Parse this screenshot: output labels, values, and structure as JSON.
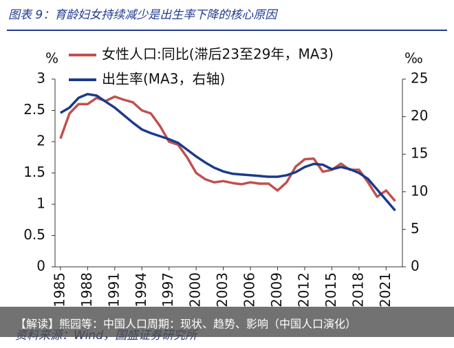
{
  "chart_data": {
    "type": "line",
    "title": "图表 9：育龄妇女持续减少是出生率下降的核心原因",
    "y_unit": "%",
    "y2_unit": "‰",
    "x": [
      1985,
      1986,
      1987,
      1988,
      1989,
      1990,
      1991,
      1992,
      1993,
      1994,
      1995,
      1996,
      1997,
      1998,
      1999,
      2000,
      2001,
      2002,
      2003,
      2004,
      2005,
      2006,
      2007,
      2008,
      2009,
      2010,
      2011,
      2012,
      2013,
      2014,
      2015,
      2016,
      2017,
      2018,
      2019,
      2020,
      2021,
      2022
    ],
    "xlim": [
      1984.4,
      2022.8
    ],
    "xticks": [
      1985,
      1988,
      1991,
      1994,
      1997,
      2000,
      2003,
      2006,
      2009,
      2012,
      2015,
      2018,
      2021
    ],
    "ylim": [
      0,
      3
    ],
    "yticks": [
      0,
      0.5,
      1,
      1.5,
      2,
      2.5,
      3
    ],
    "y2lim": [
      0,
      25
    ],
    "y2ticks": [
      0,
      5,
      10,
      15,
      20,
      25
    ],
    "series": [
      {
        "name": "女性人口:同比(滞后23至29年，MA3)",
        "color": "#c0504d",
        "values": [
          2.05,
          2.45,
          2.6,
          2.6,
          2.7,
          2.65,
          2.72,
          2.67,
          2.63,
          2.5,
          2.45,
          2.25,
          2.0,
          1.95,
          1.75,
          1.5,
          1.4,
          1.35,
          1.37,
          1.34,
          1.32,
          1.35,
          1.33,
          1.33,
          1.22,
          1.35,
          1.6,
          1.72,
          1.73,
          1.52,
          1.55,
          1.65,
          1.55,
          1.55,
          1.35,
          1.12,
          1.22,
          1.05
        ]
      },
      {
        "name": "出生率(MA3，右轴)",
        "color": "#1a3a8c",
        "axis": "y2",
        "values": [
          20.5,
          21.2,
          22.5,
          23.0,
          22.8,
          22.0,
          21.2,
          20.2,
          19.2,
          18.3,
          17.8,
          17.4,
          17.0,
          16.5,
          15.6,
          14.7,
          13.9,
          13.2,
          12.7,
          12.4,
          12.3,
          12.2,
          12.1,
          12.0,
          12.0,
          12.2,
          12.6,
          13.3,
          13.7,
          13.6,
          13.0,
          13.3,
          13.0,
          12.5,
          11.7,
          10.3,
          8.9,
          7.5
        ]
      }
    ],
    "source": "资料来源：Wind，国盛证券研究所",
    "caption": "【解读】熊园等：中国人口周期：现状、趋势、影响（中国人口演化）"
  }
}
